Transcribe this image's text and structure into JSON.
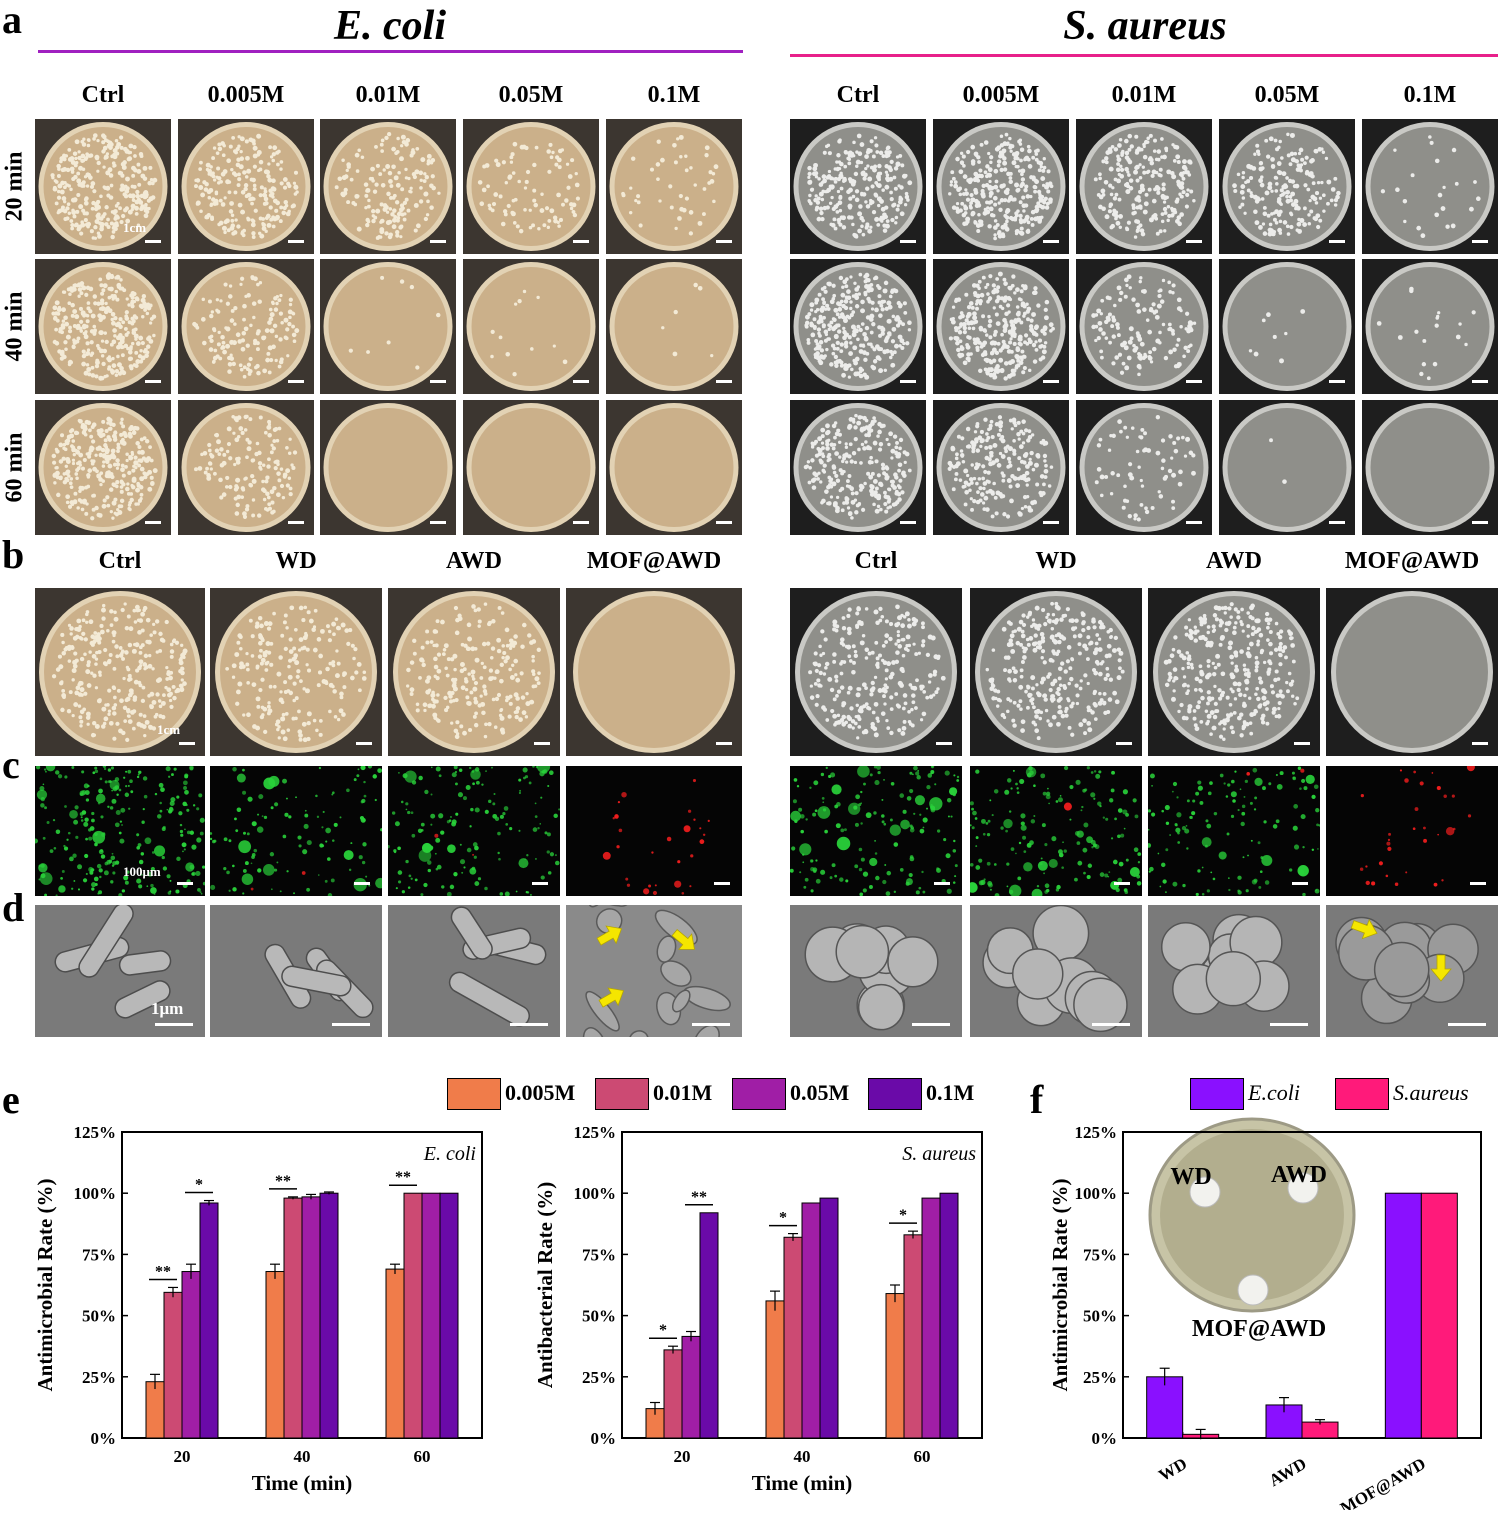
{
  "panel_letters": {
    "a": "a",
    "b": "b",
    "c": "c",
    "d": "d",
    "e": "e",
    "f": "f"
  },
  "species": {
    "ecoli": "E. coli",
    "saureus": "S. aureus"
  },
  "colors": {
    "ecoli_line": "#a020c0",
    "saureus_line": "#e8208a"
  },
  "conc_labels": [
    "Ctrl",
    "0.005M",
    "0.01M",
    "0.05M",
    "0.1M"
  ],
  "time_labels": [
    "20 min",
    "40 min",
    "60 min"
  ],
  "group_labels": [
    "Ctrl",
    "WD",
    "AWD",
    "MOF@AWD"
  ],
  "scale_labels": {
    "plate": "1cm",
    "fluor": "100μm",
    "sem": "1μm"
  },
  "plate_colonies": {
    "ecoli_a": [
      [
        300,
        220,
        160,
        90,
        45
      ],
      [
        300,
        140,
        8,
        12,
        6
      ],
      [
        300,
        150,
        0,
        0,
        0
      ]
    ],
    "saureus_a": [
      [
        260,
        300,
        220,
        190,
        22
      ],
      [
        300,
        300,
        140,
        8,
        18
      ],
      [
        260,
        220,
        70,
        2,
        0
      ]
    ],
    "ecoli_b": [
      300,
      200,
      220,
      0
    ],
    "saureus_b": [
      260,
      300,
      320,
      0
    ]
  },
  "chart_data": [
    {
      "type": "bar",
      "panel": "e",
      "annotation": "E. coli",
      "title": "",
      "xlabel": "Time (min)",
      "ylabel": "Antimicrobial Rate  (%)",
      "categories": [
        "20",
        "40",
        "60"
      ],
      "series": [
        {
          "name": "0.005M",
          "color": "#f07c4a",
          "values": [
            23,
            68,
            69
          ],
          "errors": [
            3,
            3,
            2
          ]
        },
        {
          "name": "0.01M",
          "color": "#cc4a73",
          "values": [
            59.5,
            98,
            100
          ],
          "errors": [
            2,
            0.5,
            0
          ]
        },
        {
          "name": "0.05M",
          "color": "#a01ea6",
          "values": [
            68,
            98.5,
            100
          ],
          "errors": [
            3,
            1,
            0
          ]
        },
        {
          "name": "0.1M",
          "color": "#6a0aa8",
          "values": [
            96,
            100,
            100
          ],
          "errors": [
            1,
            0.5,
            0
          ]
        }
      ],
      "significance": [
        {
          "category": 0,
          "from": 0,
          "to": 1,
          "label": "**"
        },
        {
          "category": 0,
          "from": 2,
          "to": 3,
          "label": "*"
        },
        {
          "category": 1,
          "from": 0,
          "to": 1,
          "label": "**"
        },
        {
          "category": 2,
          "from": 0,
          "to": 1,
          "label": "**"
        }
      ],
      "ylim": [
        0,
        125
      ],
      "yticks": [
        "0%",
        "25%",
        "50%",
        "75%",
        "100%",
        "125%"
      ]
    },
    {
      "type": "bar",
      "panel": "e",
      "annotation": "S. aureus",
      "title": "",
      "xlabel": "Time (min)",
      "ylabel": "Antibacterial Rate  (%)",
      "categories": [
        "20",
        "40",
        "60"
      ],
      "series": [
        {
          "name": "0.005M",
          "color": "#f07c4a",
          "values": [
            12,
            56,
            59
          ],
          "errors": [
            2.5,
            4,
            3.5
          ]
        },
        {
          "name": "0.01M",
          "color": "#cc4a73",
          "values": [
            36,
            82,
            83
          ],
          "errors": [
            1.5,
            1.5,
            1.5
          ]
        },
        {
          "name": "0.05M",
          "color": "#a01ea6",
          "values": [
            41.5,
            96,
            98
          ],
          "errors": [
            2,
            0,
            0
          ]
        },
        {
          "name": "0.1M",
          "color": "#6a0aa8",
          "values": [
            92,
            98,
            100
          ],
          "errors": [
            0,
            0,
            0
          ]
        }
      ],
      "significance": [
        {
          "category": 0,
          "from": 0,
          "to": 1,
          "label": "*"
        },
        {
          "category": 0,
          "from": 2,
          "to": 3,
          "label": "**"
        },
        {
          "category": 1,
          "from": 0,
          "to": 1,
          "label": "*"
        },
        {
          "category": 2,
          "from": 0,
          "to": 1,
          "label": "*"
        }
      ],
      "ylim": [
        0,
        125
      ],
      "yticks": [
        "0%",
        "25%",
        "50%",
        "75%",
        "100%",
        "125%"
      ]
    },
    {
      "type": "bar",
      "panel": "f",
      "title": "",
      "xlabel": "",
      "ylabel": "Antimicrobial Rate (%)",
      "categories": [
        "WD",
        "AWD",
        "MOF@AWD"
      ],
      "series": [
        {
          "name": "E.coli",
          "color": "#8a10ff",
          "values": [
            25,
            13.5,
            100
          ],
          "errors": [
            3.5,
            3,
            0
          ]
        },
        {
          "name": "S.aureus",
          "color": "#ff1a7a",
          "values": [
            1.5,
            6.5,
            100
          ],
          "errors": [
            2,
            1,
            0
          ]
        }
      ],
      "inset_labels": [
        "WD",
        "AWD",
        "MOF@AWD"
      ],
      "ylim": [
        0,
        125
      ],
      "yticks": [
        "0%",
        "25%",
        "50%",
        "75%",
        "100%",
        "125%"
      ]
    }
  ]
}
